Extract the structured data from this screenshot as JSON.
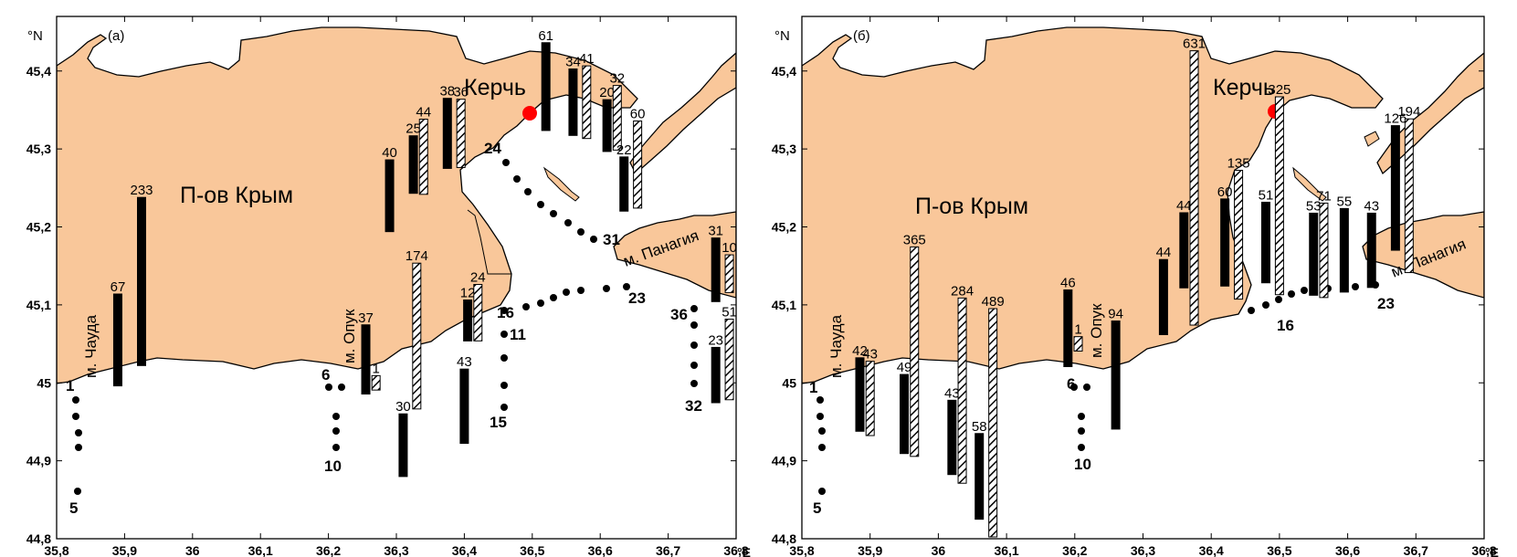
{
  "colors": {
    "land": "#f9c79a",
    "coast": "#000000",
    "city_marker": "#ff0000",
    "bar_solid": "#000000",
    "bar_hatched": "#000000"
  },
  "axes": {
    "lon_ticks": [
      "35,8",
      "35,9",
      "36",
      "36,1",
      "36,2",
      "36,3",
      "36,4",
      "36,5",
      "36,6",
      "36,7",
      "36,8"
    ],
    "lat_ticks": [
      "45,4",
      "45,3",
      "45,2",
      "45,1",
      "45",
      "44,9",
      "44,8"
    ],
    "lat_unit": "°N",
    "lon_unit": "°E"
  },
  "panels": [
    {
      "id": "a",
      "label": "(а)",
      "city": "Керчь",
      "peninsula": "П-ов Крым",
      "capes": [
        "м. Чауда",
        "м. Опук",
        "м. Панагия"
      ],
      "station_labels": [
        "1",
        "5",
        "6",
        "10",
        "11",
        "15",
        "16",
        "23",
        "24",
        "31",
        "32",
        "36"
      ],
      "bars": [
        {
          "lon": 35.89,
          "lat": 45.055,
          "value": 67,
          "kind": "solid"
        },
        {
          "lon": 35.925,
          "lat": 45.13,
          "value": 233,
          "kind": "solid"
        },
        {
          "lon": 36.255,
          "lat": 45.03,
          "value": 37,
          "kind": "solid"
        },
        {
          "lon": 36.27,
          "lat": 45.0,
          "value": 1,
          "kind": "hatched"
        },
        {
          "lon": 36.31,
          "lat": 44.92,
          "value": 30,
          "kind": "solid"
        },
        {
          "lon": 36.33,
          "lat": 45.06,
          "value": 174,
          "kind": "hatched"
        },
        {
          "lon": 36.29,
          "lat": 45.24,
          "value": 40,
          "kind": "solid"
        },
        {
          "lon": 36.325,
          "lat": 45.28,
          "value": 25,
          "kind": "solid"
        },
        {
          "lon": 36.34,
          "lat": 45.29,
          "value": 44,
          "kind": "hatched"
        },
        {
          "lon": 36.375,
          "lat": 45.32,
          "value": 38,
          "kind": "solid"
        },
        {
          "lon": 36.395,
          "lat": 45.32,
          "value": 36,
          "kind": "hatched"
        },
        {
          "lon": 36.405,
          "lat": 45.08,
          "value": 12,
          "kind": "solid"
        },
        {
          "lon": 36.42,
          "lat": 45.09,
          "value": 24,
          "kind": "hatched"
        },
        {
          "lon": 36.4,
          "lat": 44.97,
          "value": 43,
          "kind": "solid"
        },
        {
          "lon": 36.52,
          "lat": 45.38,
          "value": 61,
          "kind": "solid"
        },
        {
          "lon": 36.56,
          "lat": 45.36,
          "value": 34,
          "kind": "solid"
        },
        {
          "lon": 36.58,
          "lat": 45.36,
          "value": 41,
          "kind": "hatched"
        },
        {
          "lon": 36.61,
          "lat": 45.33,
          "value": 20,
          "kind": "solid"
        },
        {
          "lon": 36.625,
          "lat": 45.34,
          "value": 32,
          "kind": "hatched"
        },
        {
          "lon": 36.635,
          "lat": 45.255,
          "value": 22,
          "kind": "solid"
        },
        {
          "lon": 36.655,
          "lat": 45.28,
          "value": 60,
          "kind": "hatched"
        },
        {
          "lon": 36.77,
          "lat": 45.145,
          "value": 31,
          "kind": "solid"
        },
        {
          "lon": 36.79,
          "lat": 45.14,
          "value": 10,
          "kind": "hatched"
        },
        {
          "lon": 36.77,
          "lat": 45.01,
          "value": 23,
          "kind": "solid"
        },
        {
          "lon": 36.79,
          "lat": 45.03,
          "value": 51,
          "kind": "hatched"
        }
      ]
    },
    {
      "id": "b",
      "label": "(б)",
      "city": "Керчь",
      "peninsula": "П-ов Крым",
      "capes": [
        "м. Чауда",
        "м. Опук",
        "м. Панагия"
      ],
      "station_labels": [
        "1",
        "5",
        "6",
        "10",
        "16",
        "23"
      ],
      "bars": [
        {
          "lon": 35.885,
          "lat": 44.985,
          "value": 42,
          "kind": "solid"
        },
        {
          "lon": 35.9,
          "lat": 44.98,
          "value": 43,
          "kind": "hatched"
        },
        {
          "lon": 35.95,
          "lat": 44.96,
          "value": 49,
          "kind": "solid"
        },
        {
          "lon": 35.965,
          "lat": 45.04,
          "value": 365,
          "kind": "hatched"
        },
        {
          "lon": 36.02,
          "lat": 44.93,
          "value": 43,
          "kind": "solid"
        },
        {
          "lon": 36.035,
          "lat": 44.99,
          "value": 284,
          "kind": "hatched"
        },
        {
          "lon": 36.06,
          "lat": 44.88,
          "value": 58,
          "kind": "solid"
        },
        {
          "lon": 36.08,
          "lat": 44.94,
          "value": 489,
          "kind": "hatched"
        },
        {
          "lon": 36.19,
          "lat": 45.07,
          "value": 46,
          "kind": "solid"
        },
        {
          "lon": 36.205,
          "lat": 45.05,
          "value": 1,
          "kind": "hatched"
        },
        {
          "lon": 36.26,
          "lat": 45.01,
          "value": 94,
          "kind": "solid"
        },
        {
          "lon": 36.33,
          "lat": 45.11,
          "value": 44,
          "kind": "solid"
        },
        {
          "lon": 36.36,
          "lat": 45.17,
          "value": 44,
          "kind": "solid"
        },
        {
          "lon": 36.375,
          "lat": 45.25,
          "value": 631,
          "kind": "hatched"
        },
        {
          "lon": 36.42,
          "lat": 45.18,
          "value": 60,
          "kind": "solid"
        },
        {
          "lon": 36.44,
          "lat": 45.19,
          "value": 135,
          "kind": "hatched"
        },
        {
          "lon": 36.48,
          "lat": 45.18,
          "value": 51,
          "kind": "solid"
        },
        {
          "lon": 36.5,
          "lat": 45.24,
          "value": 325,
          "kind": "hatched"
        },
        {
          "lon": 36.55,
          "lat": 45.165,
          "value": 53,
          "kind": "solid"
        },
        {
          "lon": 36.565,
          "lat": 45.17,
          "value": 71,
          "kind": "hatched"
        },
        {
          "lon": 36.595,
          "lat": 45.17,
          "value": 55,
          "kind": "solid"
        },
        {
          "lon": 36.635,
          "lat": 45.17,
          "value": 43,
          "kind": "solid"
        },
        {
          "lon": 36.67,
          "lat": 45.25,
          "value": 126,
          "kind": "solid"
        },
        {
          "lon": 36.69,
          "lat": 45.24,
          "value": 194,
          "kind": "hatched"
        }
      ]
    }
  ]
}
